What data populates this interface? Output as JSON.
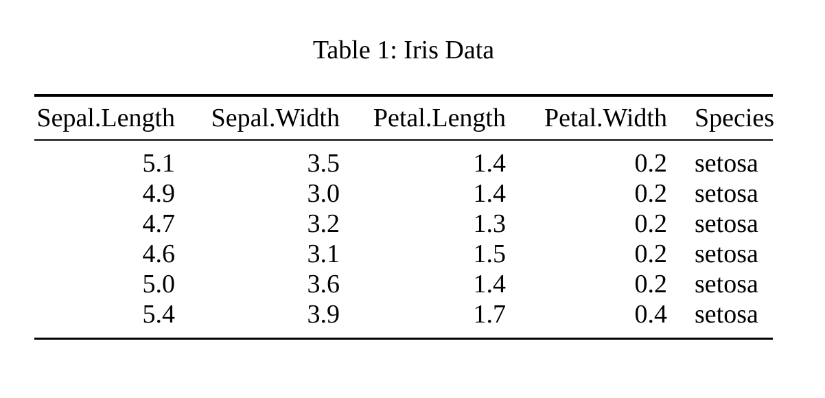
{
  "caption": "Table 1: Iris Data",
  "table": {
    "columns": [
      {
        "label": "Sepal.Length",
        "align": "right"
      },
      {
        "label": "Sepal.Width",
        "align": "right"
      },
      {
        "label": "Petal.Length",
        "align": "right"
      },
      {
        "label": "Petal.Width",
        "align": "right"
      },
      {
        "label": "Species",
        "align": "left"
      }
    ],
    "rows": [
      [
        "5.1",
        "3.5",
        "1.4",
        "0.2",
        "setosa"
      ],
      [
        "4.9",
        "3.0",
        "1.4",
        "0.2",
        "setosa"
      ],
      [
        "4.7",
        "3.2",
        "1.3",
        "0.2",
        "setosa"
      ],
      [
        "4.6",
        "3.1",
        "1.5",
        "0.2",
        "setosa"
      ],
      [
        "5.0",
        "3.6",
        "1.4",
        "0.2",
        "setosa"
      ],
      [
        "5.4",
        "3.9",
        "1.7",
        "0.4",
        "setosa"
      ]
    ]
  },
  "colors": {
    "text": "#000000",
    "background": "#ffffff",
    "rule": "#000000"
  }
}
